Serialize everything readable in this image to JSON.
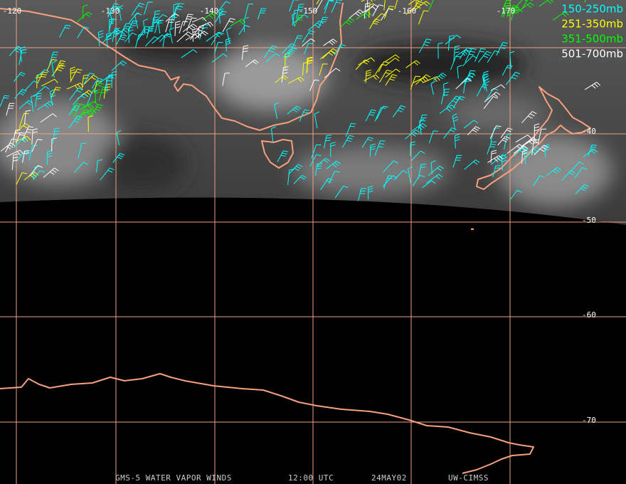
{
  "longitude_labels": [
    "-120",
    "-130",
    "-140",
    "-150",
    "-160",
    "-170"
  ],
  "latitude_labels": [
    "-40",
    "-50",
    "-60",
    "-70"
  ],
  "legend": [
    {
      "label": "150-250mb",
      "color": "#00ffff"
    },
    {
      "label": "251-350mb",
      "color": "#ffff00"
    },
    {
      "label": "351-500mb",
      "color": "#00ff00"
    },
    {
      "label": "501-700mb",
      "color": "#ffffff"
    }
  ],
  "footer": {
    "satellite": "GMS-5 WATER VAPOR WINDS",
    "time": "12:00 UTC",
    "date": "24MAY02",
    "source": "UW-CIMSS"
  }
}
